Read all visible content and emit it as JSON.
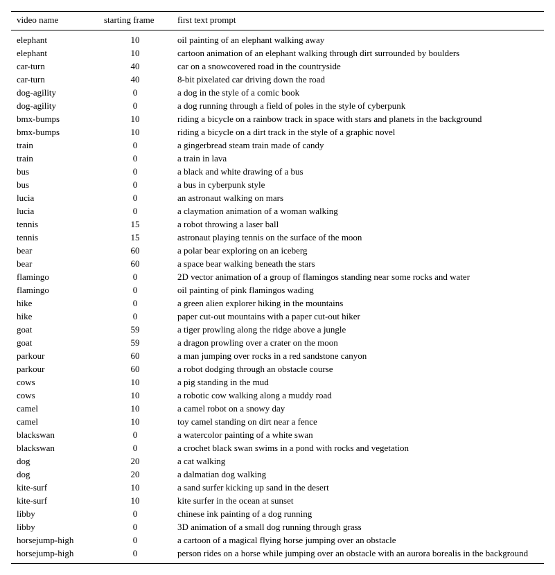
{
  "table": {
    "columns": [
      "video name",
      "starting frame",
      "first text prompt"
    ],
    "rows": [
      [
        "elephant",
        "10",
        "oil painting of an elephant walking away"
      ],
      [
        "elephant",
        "10",
        "cartoon animation of an elephant walking through dirt surrounded by boulders"
      ],
      [
        "car-turn",
        "40",
        "car on a snowcovered road in the countryside"
      ],
      [
        "car-turn",
        "40",
        "8-bit pixelated car driving down the road"
      ],
      [
        "dog-agility",
        "0",
        "a dog in the style of a comic book"
      ],
      [
        "dog-agility",
        "0",
        "a dog running through a field of poles in the style of cyberpunk"
      ],
      [
        "bmx-bumps",
        "10",
        "riding a bicycle on a rainbow track in space with stars and planets in the background"
      ],
      [
        "bmx-bumps",
        "10",
        "riding a bicycle on a dirt track in the style of a graphic novel"
      ],
      [
        "train",
        "0",
        "a gingerbread steam train made of candy"
      ],
      [
        "train",
        "0",
        "a train in lava"
      ],
      [
        "bus",
        "0",
        "a black and white drawing of a bus"
      ],
      [
        "bus",
        "0",
        "a bus in cyberpunk style"
      ],
      [
        "lucia",
        "0",
        "an astronaut walking on mars"
      ],
      [
        "lucia",
        "0",
        "a claymation animation of a woman walking"
      ],
      [
        "tennis",
        "15",
        "a robot throwing a laser ball"
      ],
      [
        "tennis",
        "15",
        "astronaut playing tennis on the surface of the moon"
      ],
      [
        "bear",
        "60",
        "a polar bear exploring on an iceberg"
      ],
      [
        "bear",
        "60",
        "a space bear walking beneath the stars"
      ],
      [
        "flamingo",
        "0",
        "2D vector animation of a group of flamingos standing near some rocks and water"
      ],
      [
        "flamingo",
        "0",
        "oil painting of pink flamingos wading"
      ],
      [
        "hike",
        "0",
        "a green alien explorer hiking in the mountains"
      ],
      [
        "hike",
        "0",
        "paper cut-out mountains with a paper cut-out hiker"
      ],
      [
        "goat",
        "59",
        "a tiger prowling along the ridge above a jungle"
      ],
      [
        "goat",
        "59",
        "a dragon prowling over a crater on the moon"
      ],
      [
        "parkour",
        "60",
        "a man jumping over rocks in a red sandstone canyon"
      ],
      [
        "parkour",
        "60",
        "a robot dodging through an obstacle course"
      ],
      [
        "cows",
        "10",
        "a pig standing in the mud"
      ],
      [
        "cows",
        "10",
        "a robotic cow walking along a muddy road"
      ],
      [
        "camel",
        "10",
        "a camel robot on a snowy day"
      ],
      [
        "camel",
        "10",
        "toy camel standing on dirt near a fence"
      ],
      [
        "blackswan",
        "0",
        "a watercolor painting of a white swan"
      ],
      [
        "blackswan",
        "0",
        "a crochet black swan swims in a pond with rocks and vegetation"
      ],
      [
        "dog",
        "20",
        "a cat walking"
      ],
      [
        "dog",
        "20",
        "a dalmatian dog walking"
      ],
      [
        "kite-surf",
        "10",
        "a sand surfer kicking up sand in the desert"
      ],
      [
        "kite-surf",
        "10",
        "kite surfer in the ocean at sunset"
      ],
      [
        "libby",
        "0",
        "chinese ink painting of a dog running"
      ],
      [
        "libby",
        "0",
        "3D animation of a small dog running through grass"
      ],
      [
        "horsejump-high",
        "0",
        "a cartoon of a magical flying horse jumping over an obstacle"
      ],
      [
        "horsejump-high",
        "0",
        "person rides on a horse while jumping over an obstacle with an aurora borealis in the background"
      ]
    ]
  }
}
